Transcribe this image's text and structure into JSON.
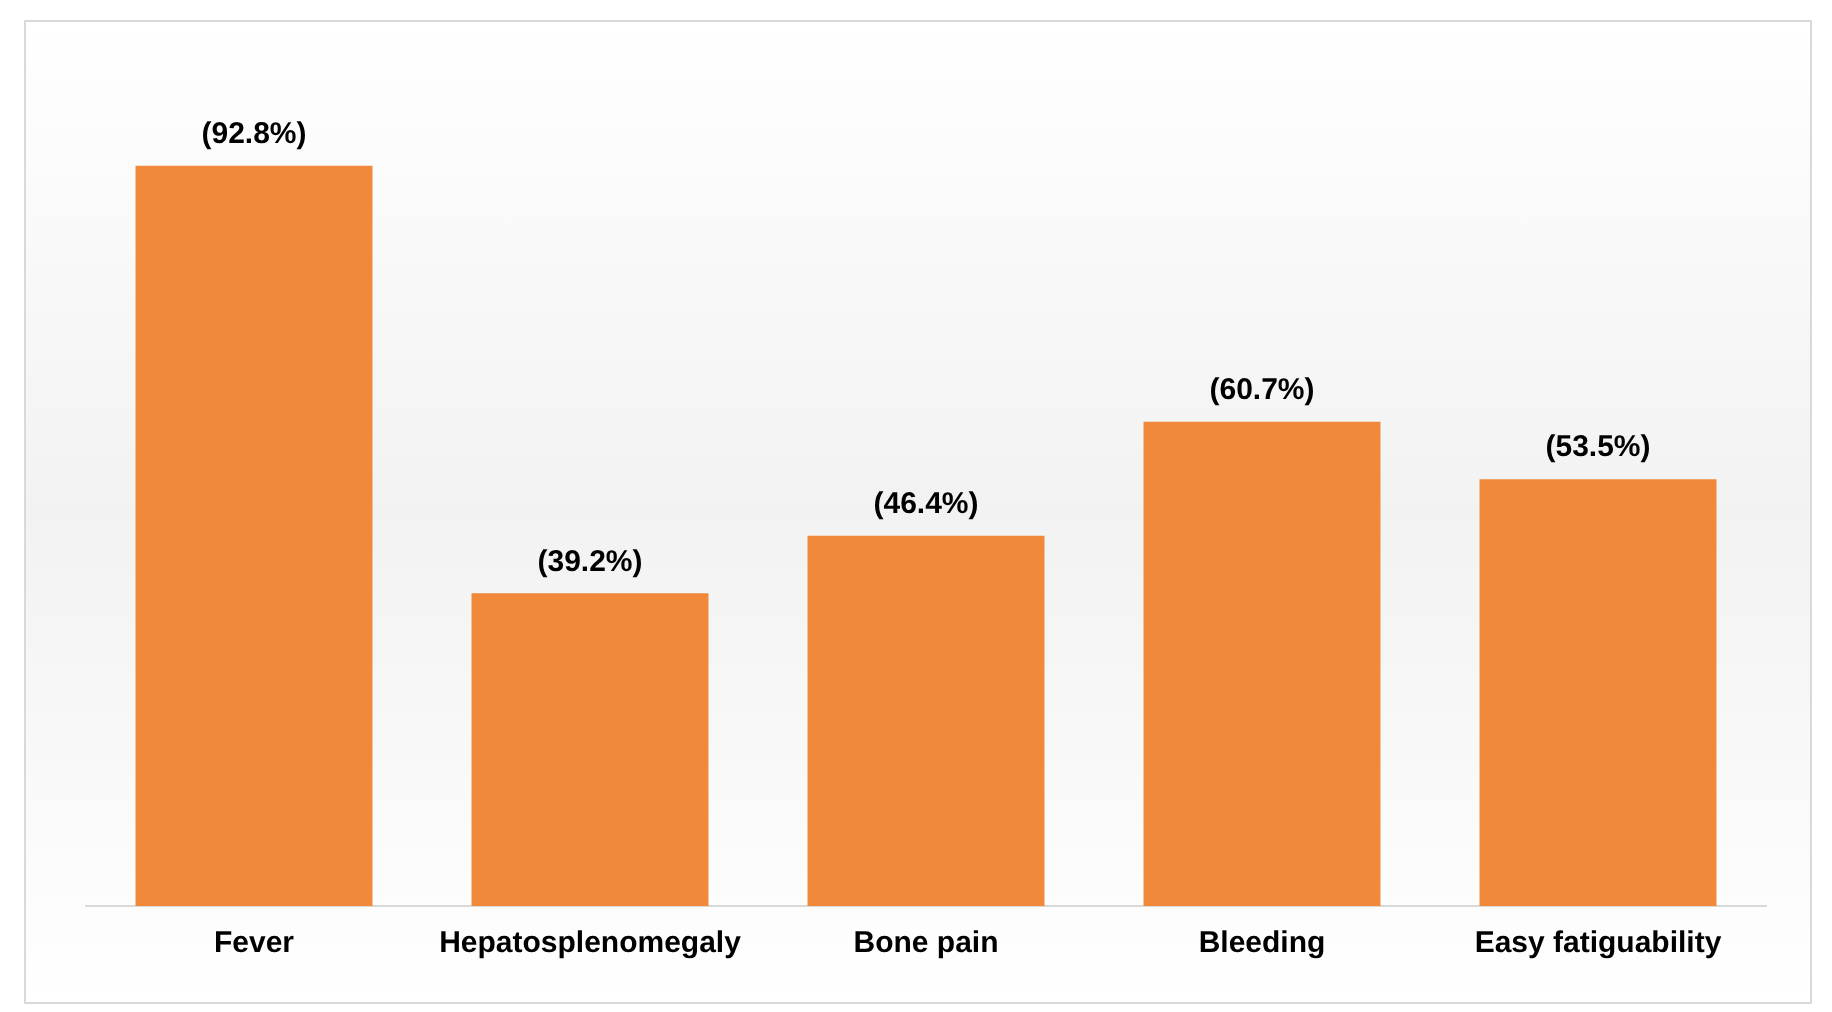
{
  "chart_data": {
    "type": "bar",
    "categories": [
      "Fever",
      "Hepatosplenomegaly",
      "Bone pain",
      "Bleeding",
      "Easy fatiguability"
    ],
    "values": [
      92.8,
      39.2,
      46.4,
      60.7,
      53.5
    ],
    "value_labels": [
      "(92.8%)",
      "(39.2%)",
      "(46.4%)",
      "(60.7%)",
      "(53.5%)"
    ],
    "color": "#f08a3a",
    "grid": false,
    "legend": false
  }
}
